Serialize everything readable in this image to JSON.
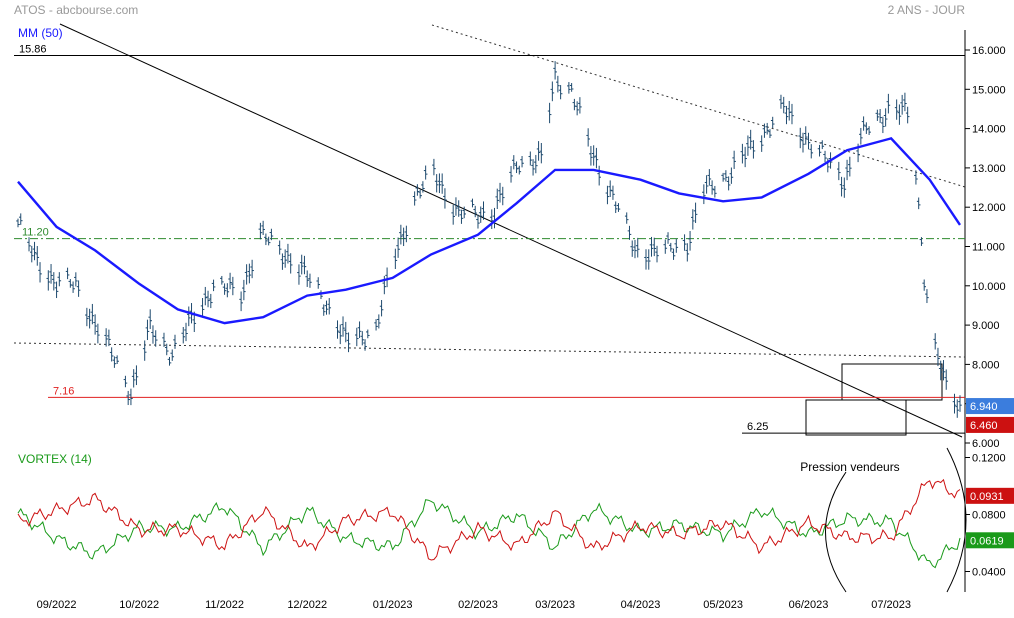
{
  "header": {
    "title": "ATOS - abcbourse.com",
    "period": "2 ANS - JOUR"
  },
  "price_panel": {
    "ma_label": "MM (50)",
    "y_ticks": [
      "16.000",
      "15.000",
      "14.000",
      "13.000",
      "12.000",
      "11.000",
      "10.000",
      "9.000",
      "8.000",
      "7.000",
      "6.000"
    ],
    "levels": [
      {
        "label": "15.86",
        "value": 15.86,
        "color": "#000000",
        "style": "solid"
      },
      {
        "label": "11.20",
        "value": 11.2,
        "color": "#2e8b2e",
        "style": "dashdot"
      },
      {
        "label": "7.16",
        "value": 7.16,
        "color": "#e02020",
        "style": "solid"
      },
      {
        "label": "6.25",
        "value": 6.25,
        "color": "#000000",
        "style": "solid"
      }
    ],
    "badges": [
      {
        "text": "6.940",
        "value": 6.94,
        "color": "#3b7ddd"
      },
      {
        "text": "6.460",
        "value": 6.46,
        "color": "#cc1111"
      }
    ]
  },
  "vortex_panel": {
    "label": "VORTEX (14)",
    "annotation": "Pression vendeurs",
    "y_ticks": [
      "0.1200",
      "0.0800",
      "0.0400"
    ],
    "badges": [
      {
        "text": "0.0931",
        "value": 0.0931,
        "color": "#cc1111"
      },
      {
        "text": "0.0619",
        "value": 0.0619,
        "color": "#1a9a1a"
      }
    ]
  },
  "x_axis": {
    "labels": [
      "09/2022",
      "10/2022",
      "11/2022",
      "12/2022",
      "01/2023",
      "02/2023",
      "03/2023",
      "04/2023",
      "05/2023",
      "06/2023",
      "07/2023"
    ]
  },
  "colors": {
    "bars": "#1e4a6e",
    "ma": "#1a1aff",
    "vi_plus": "#1a9a1a",
    "vi_minus": "#cc1111"
  },
  "chart_data": [
    {
      "type": "line",
      "title": "",
      "ylim": [
        6.0,
        16.5
      ],
      "series": [
        {
          "name": "MM (50)",
          "x": [
            "2022-08-18",
            "2022-09-01",
            "2022-09-15",
            "2022-10-01",
            "2022-10-15",
            "2022-11-01",
            "2022-11-15",
            "2022-12-01",
            "2022-12-15",
            "2023-01-01",
            "2023-01-15",
            "2023-02-01",
            "2023-02-15",
            "2023-03-01",
            "2023-03-15",
            "2023-04-01",
            "2023-04-15",
            "2023-05-01",
            "2023-05-15",
            "2023-06-01",
            "2023-06-15",
            "2023-07-01",
            "2023-07-15",
            "2023-07-26"
          ],
          "values": [
            12.65,
            11.5,
            10.9,
            10.05,
            9.4,
            9.05,
            9.2,
            9.75,
            9.9,
            10.2,
            10.8,
            11.3,
            12.1,
            12.95,
            12.95,
            12.7,
            12.35,
            12.15,
            12.25,
            12.85,
            13.45,
            13.75,
            12.7,
            11.55
          ]
        }
      ]
    },
    {
      "type": "line",
      "title": "",
      "ylim": [
        0.03,
        0.125
      ],
      "series": [
        {
          "name": "",
          "x": [
            "2022-08-18",
            "2022-09-01",
            "2022-09-15",
            "2022-10-01",
            "2022-10-15",
            "2022-11-01",
            "2022-11-15",
            "2022-12-01",
            "2022-12-15",
            "2023-01-01",
            "2023-01-15",
            "2023-02-01",
            "2023-02-15",
            "2023-03-01",
            "2023-03-15",
            "2023-04-01",
            "2023-04-15",
            "2023-05-01",
            "2023-05-15",
            "2023-06-01",
            "2023-06-15",
            "2023-07-01",
            "2023-07-15",
            "2023-07-26"
          ],
          "values": [
            0.081,
            0.063,
            0.052,
            0.071,
            0.07,
            0.086,
            0.056,
            0.083,
            0.063,
            0.057,
            0.09,
            0.067,
            0.08,
            0.057,
            0.084,
            0.068,
            0.073,
            0.066,
            0.083,
            0.066,
            0.077,
            0.075,
            0.044,
            0.0619
          ]
        },
        {
          "name": "",
          "x": [
            "2022-08-18",
            "2022-09-01",
            "2022-09-15",
            "2022-10-01",
            "2022-10-15",
            "2022-11-01",
            "2022-11-15",
            "2022-12-01",
            "2022-12-15",
            "2023-01-01",
            "2023-01-15",
            "2023-02-01",
            "2023-02-15",
            "2023-03-01",
            "2023-03-15",
            "2023-04-01",
            "2023-04-15",
            "2023-05-01",
            "2023-05-15",
            "2023-06-01",
            "2023-06-15",
            "2023-07-01",
            "2023-07-15",
            "2023-07-26"
          ],
          "values": [
            0.075,
            0.083,
            0.091,
            0.069,
            0.07,
            0.058,
            0.083,
            0.056,
            0.076,
            0.082,
            0.05,
            0.07,
            0.058,
            0.081,
            0.056,
            0.072,
            0.066,
            0.074,
            0.057,
            0.074,
            0.064,
            0.064,
            0.105,
            0.0931
          ]
        }
      ]
    }
  ]
}
